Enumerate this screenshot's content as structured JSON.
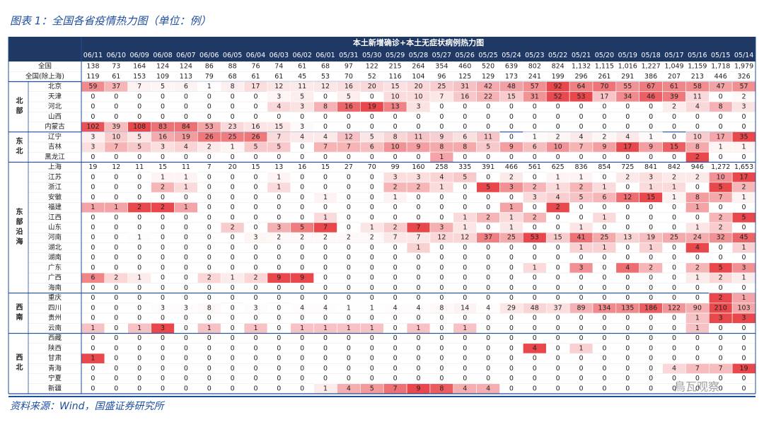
{
  "title": "图表 1：全国各省疫情热力图（单位：例）",
  "table_title": "本土新增确诊+本土无症状病例热力图",
  "columns": [
    "06/11",
    "06/10",
    "06/09",
    "06/08",
    "06/07",
    "06/06",
    "06/05",
    "06/04",
    "06/03",
    "06/02",
    "06/01",
    "05/31",
    "05/30",
    "05/29",
    "05/28",
    "05/27",
    "05/26",
    "05/25",
    "05/24",
    "05/23",
    "05/22",
    "05/21",
    "05/20",
    "05/19",
    "05/18",
    "05/17",
    "05/16",
    "05/15",
    "05/14"
  ],
  "totals": [
    {
      "label": "全国",
      "values": [
        "138",
        "73",
        "164",
        "124",
        "124",
        "86",
        "88",
        "76",
        "74",
        "61",
        "68",
        "97",
        "122",
        "215",
        "264",
        "354",
        "460",
        "520",
        "639",
        "802",
        "824",
        "1,132",
        "1,115",
        "1,016",
        "1,227",
        "1,049",
        "1,159",
        "1,718",
        "1,979"
      ]
    },
    {
      "label": "全国(除上海)",
      "values": [
        "119",
        "61",
        "153",
        "109",
        "113",
        "79",
        "68",
        "61",
        "61",
        "45",
        "53",
        "70",
        "52",
        "116",
        "104",
        "96",
        "125",
        "129",
        "173",
        "241",
        "199",
        "296",
        "261",
        "291",
        "386",
        "207",
        "213",
        "446",
        "326"
      ]
    }
  ],
  "groups": [
    {
      "label": "北部",
      "rows": [
        {
          "label": "北京",
          "heat": true,
          "values": [
            59,
            37,
            7,
            5,
            6,
            1,
            8,
            17,
            12,
            11,
            12,
            16,
            20,
            15,
            20,
            25,
            31,
            42,
            48,
            57,
            92,
            64,
            70,
            55,
            67,
            61,
            58,
            47,
            57
          ]
        },
        {
          "label": "天津",
          "heat": true,
          "values": [
            0,
            0,
            0,
            0,
            0,
            0,
            0,
            0,
            3,
            5,
            0,
            5,
            0,
            10,
            10,
            7,
            16,
            22,
            15,
            31,
            52,
            53,
            17,
            34,
            46,
            39,
            11,
            0,
            2
          ]
        },
        {
          "label": "河北",
          "heat": true,
          "values": [
            0,
            0,
            0,
            0,
            0,
            0,
            0,
            0,
            4,
            3,
            8,
            16,
            19,
            13,
            3,
            0,
            0,
            0,
            0,
            0,
            0,
            0,
            0,
            0,
            0,
            2,
            4,
            8,
            3
          ]
        },
        {
          "label": "山西",
          "heat": true,
          "values": [
            0,
            0,
            0,
            0,
            0,
            0,
            0,
            0,
            0,
            0,
            0,
            0,
            0,
            0,
            0,
            0,
            0,
            0,
            0,
            0,
            0,
            0,
            0,
            0,
            0,
            0,
            0,
            0,
            0
          ]
        },
        {
          "label": "内蒙古",
          "heat": true,
          "values": [
            102,
            39,
            108,
            83,
            84,
            53,
            23,
            16,
            15,
            3,
            0,
            0,
            0,
            0,
            0,
            0,
            0,
            0,
            0,
            0,
            0,
            0,
            0,
            0,
            0,
            0,
            0,
            0,
            0
          ]
        }
      ]
    },
    {
      "label": "东北",
      "rows": [
        {
          "label": "辽宁",
          "heat": true,
          "values": [
            3,
            10,
            5,
            16,
            19,
            26,
            25,
            26,
            7,
            4,
            4,
            12,
            5,
            8,
            11,
            9,
            6,
            11,
            0,
            1,
            2,
            4,
            2,
            4,
            1,
            0,
            10,
            17,
            35
          ]
        },
        {
          "label": "吉林",
          "heat": true,
          "values": [
            3,
            7,
            5,
            3,
            4,
            2,
            1,
            5,
            5,
            0,
            7,
            7,
            6,
            10,
            9,
            8,
            8,
            5,
            9,
            6,
            10,
            7,
            9,
            17,
            9,
            15,
            8,
            1,
            1
          ]
        },
        {
          "label": "黑龙江",
          "heat": true,
          "values": [
            0,
            0,
            0,
            0,
            0,
            0,
            0,
            0,
            0,
            0,
            0,
            0,
            0,
            0,
            0,
            1,
            0,
            0,
            0,
            0,
            0,
            0,
            0,
            0,
            0,
            0,
            2,
            0,
            0
          ]
        }
      ]
    },
    {
      "label": "东部沿海",
      "rows": [
        {
          "label": "上海",
          "heat": false,
          "values": [
            "19",
            "12",
            "11",
            "15",
            "11",
            "7",
            "20",
            "15",
            "13",
            "16",
            "15",
            "27",
            "70",
            "99",
            "160",
            "258",
            "335",
            "391",
            "466",
            "561",
            "625",
            "836",
            "854",
            "725",
            "841",
            "842",
            "946",
            "1,272",
            "1,653"
          ]
        },
        {
          "label": "江苏",
          "heat": true,
          "values": [
            0,
            0,
            0,
            1,
            1,
            0,
            0,
            0,
            1,
            0,
            0,
            0,
            0,
            3,
            3,
            4,
            5,
            0,
            2,
            0,
            1,
            1,
            0,
            2,
            3,
            2,
            2,
            10,
            17
          ]
        },
        {
          "label": "浙江",
          "heat": true,
          "values": [
            0,
            0,
            0,
            2,
            1,
            0,
            0,
            0,
            1,
            0,
            0,
            0,
            0,
            2,
            2,
            1,
            0,
            5,
            3,
            2,
            1,
            2,
            1,
            0,
            1,
            1,
            0,
            5,
            2
          ]
        },
        {
          "label": "安徽",
          "heat": true,
          "values": [
            0,
            0,
            0,
            0,
            0,
            0,
            0,
            0,
            0,
            0,
            1,
            0,
            0,
            1,
            0,
            0,
            0,
            0,
            0,
            3,
            4,
            5,
            6,
            12,
            15,
            1,
            8,
            7,
            1
          ]
        },
        {
          "label": "福建",
          "heat": true,
          "values": [
            1,
            1,
            2,
            2,
            1,
            0,
            0,
            0,
            0,
            0,
            0,
            0,
            0,
            0,
            0,
            0,
            0,
            0,
            1,
            0,
            2,
            0,
            0,
            0,
            0,
            0,
            1,
            0,
            0
          ]
        },
        {
          "label": "江西",
          "heat": true,
          "values": [
            0,
            0,
            0,
            0,
            0,
            0,
            0,
            0,
            0,
            0,
            1,
            0,
            0,
            0,
            0,
            0,
            1,
            2,
            1,
            2,
            0,
            0,
            1,
            0,
            0,
            0,
            0,
            2,
            5
          ]
        },
        {
          "label": "山东",
          "heat": true,
          "values": [
            0,
            0,
            0,
            0,
            0,
            0,
            2,
            0,
            3,
            5,
            7,
            0,
            1,
            2,
            7,
            3,
            1,
            0,
            1,
            0,
            0,
            1,
            0,
            0,
            0,
            0,
            1,
            2,
            0
          ]
        },
        {
          "label": "河南",
          "heat": true,
          "values": [
            0,
            0,
            1,
            0,
            0,
            0,
            0,
            3,
            2,
            2,
            2,
            2,
            2,
            7,
            7,
            12,
            12,
            37,
            25,
            53,
            15,
            41,
            25,
            13,
            19,
            25,
            24,
            32,
            45
          ]
        },
        {
          "label": "湖北",
          "heat": true,
          "values": [
            0,
            0,
            0,
            0,
            0,
            0,
            0,
            0,
            0,
            0,
            0,
            0,
            0,
            0,
            1,
            0,
            0,
            0,
            0,
            0,
            0,
            1,
            1,
            0,
            1,
            0,
            4,
            0,
            1
          ]
        },
        {
          "label": "湖南",
          "heat": true,
          "values": [
            0,
            0,
            0,
            0,
            0,
            0,
            0,
            0,
            0,
            0,
            0,
            0,
            0,
            0,
            0,
            0,
            0,
            0,
            0,
            0,
            0,
            0,
            0,
            0,
            0,
            0,
            0,
            0,
            0
          ]
        },
        {
          "label": "广东",
          "heat": true,
          "values": [
            0,
            0,
            0,
            0,
            0,
            0,
            0,
            0,
            0,
            0,
            0,
            0,
            0,
            0,
            0,
            0,
            0,
            0,
            0,
            1,
            0,
            3,
            0,
            4,
            2,
            0,
            2,
            5,
            3
          ]
        },
        {
          "label": "广西",
          "heat": true,
          "values": [
            6,
            2,
            1,
            0,
            0,
            2,
            1,
            2,
            9,
            9,
            0,
            0,
            0,
            0,
            0,
            0,
            0,
            0,
            0,
            0,
            0,
            0,
            0,
            0,
            0,
            0,
            1,
            2,
            1
          ]
        },
        {
          "label": "海南",
          "heat": true,
          "values": [
            0,
            0,
            0,
            0,
            0,
            0,
            0,
            0,
            0,
            0,
            0,
            0,
            0,
            0,
            0,
            0,
            0,
            0,
            0,
            0,
            0,
            0,
            0,
            0,
            0,
            0,
            0,
            0,
            0
          ]
        }
      ]
    },
    {
      "label": "西南",
      "rows": [
        {
          "label": "重庆",
          "heat": true,
          "values": [
            0,
            0,
            0,
            0,
            0,
            0,
            0,
            0,
            0,
            0,
            0,
            0,
            0,
            0,
            0,
            0,
            0,
            0,
            0,
            0,
            0,
            0,
            0,
            0,
            0,
            0,
            0,
            2,
            1
          ]
        },
        {
          "label": "四川",
          "heat": true,
          "values": [
            0,
            0,
            0,
            3,
            3,
            8,
            0,
            3,
            0,
            4,
            4,
            1,
            1,
            4,
            4,
            8,
            14,
            4,
            29,
            48,
            37,
            89,
            134,
            135,
            186,
            122,
            90,
            210,
            103
          ]
        },
        {
          "label": "贵州",
          "heat": true,
          "values": [
            0,
            0,
            0,
            0,
            0,
            0,
            0,
            0,
            0,
            0,
            0,
            0,
            0,
            0,
            0,
            0,
            0,
            0,
            0,
            0,
            0,
            0,
            0,
            0,
            0,
            0,
            1,
            3,
            3
          ]
        },
        {
          "label": "云南",
          "heat": true,
          "values": [
            1,
            0,
            1,
            3,
            0,
            1,
            0,
            1,
            0,
            1,
            1,
            1,
            1,
            0,
            1,
            0,
            1,
            0,
            0,
            0,
            0,
            0,
            0,
            0,
            0,
            0,
            1,
            0,
            0
          ]
        }
      ]
    },
    {
      "label": "西北",
      "rows": [
        {
          "label": "西藏",
          "heat": true,
          "values": [
            0,
            0,
            0,
            0,
            0,
            0,
            0,
            0,
            0,
            0,
            0,
            0,
            0,
            0,
            0,
            0,
            0,
            0,
            0,
            0,
            0,
            0,
            0,
            0,
            0,
            0,
            0,
            0,
            0
          ]
        },
        {
          "label": "陕西",
          "heat": true,
          "values": [
            0,
            0,
            0,
            0,
            0,
            0,
            0,
            0,
            0,
            0,
            0,
            0,
            0,
            0,
            0,
            0,
            0,
            0,
            0,
            4,
            0,
            1,
            0,
            0,
            0,
            0,
            0,
            0,
            0
          ]
        },
        {
          "label": "甘肃",
          "heat": true,
          "values": [
            1,
            0,
            0,
            0,
            0,
            0,
            0,
            0,
            0,
            0,
            0,
            0,
            0,
            0,
            0,
            0,
            0,
            0,
            0,
            0,
            0,
            0,
            0,
            0,
            0,
            0,
            0,
            0,
            0
          ]
        },
        {
          "label": "青海",
          "heat": true,
          "values": [
            0,
            0,
            0,
            0,
            0,
            0,
            0,
            0,
            0,
            0,
            0,
            0,
            0,
            0,
            0,
            0,
            0,
            0,
            0,
            0,
            0,
            0,
            0,
            0,
            0,
            4,
            7,
            7,
            19
          ]
        },
        {
          "label": "宁夏",
          "heat": true,
          "values": [
            0,
            0,
            0,
            0,
            0,
            0,
            0,
            0,
            0,
            0,
            0,
            0,
            0,
            0,
            0,
            0,
            0,
            0,
            0,
            0,
            0,
            0,
            0,
            0,
            0,
            0,
            0,
            0,
            0
          ]
        },
        {
          "label": "新疆",
          "heat": true,
          "values": [
            0,
            0,
            0,
            0,
            0,
            0,
            0,
            0,
            0,
            0,
            1,
            4,
            5,
            7,
            9,
            8,
            4,
            4,
            0,
            0,
            0,
            0,
            0,
            0,
            0,
            0,
            0,
            0,
            0
          ]
        }
      ]
    }
  ],
  "source": "资料来源：Wind，国盛证券研究所",
  "watermark": "鳥瓦观察"
}
